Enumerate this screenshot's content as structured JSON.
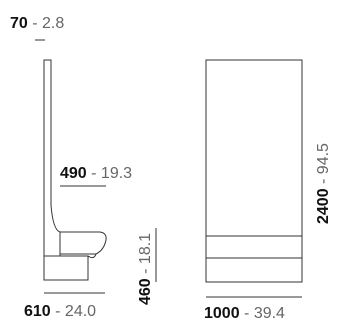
{
  "dimensions": {
    "back_thickness": {
      "metric": "70",
      "sep": " - ",
      "imperial": "2.8"
    },
    "seat_depth": {
      "metric": "490",
      "sep": " - ",
      "imperial": "19.3"
    },
    "seat_height": {
      "metric": "460",
      "sep": " - ",
      "imperial": "18.1"
    },
    "side_depth": {
      "metric": "610",
      "sep": " - ",
      "imperial": "24.0"
    },
    "total_height": {
      "metric": "2400",
      "sep": " - ",
      "imperial": "94.5"
    },
    "front_width": {
      "metric": "1000",
      "sep": " - ",
      "imperial": "39.4"
    }
  },
  "colors": {
    "line": "#333333",
    "text": "#222222",
    "muted": "#666666"
  }
}
